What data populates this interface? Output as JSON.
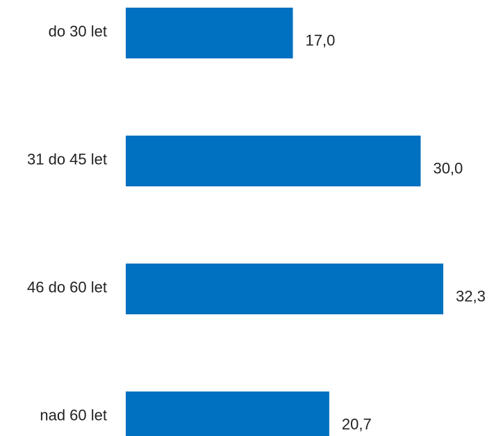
{
  "chart_data": {
    "type": "bar",
    "orientation": "horizontal",
    "title": "",
    "xlabel": "",
    "ylabel": "",
    "categories": [
      "do 30 let",
      "31 do 45 let",
      "46 do 60 let",
      "nad 60 let"
    ],
    "values": [
      17.0,
      30.0,
      32.3,
      20.7
    ],
    "value_labels": [
      "17,0",
      "30,0",
      "32,3",
      "20,7"
    ],
    "xlim": [
      0,
      32.3
    ],
    "grid": false,
    "legend": "none",
    "bar_color": "#0070C0"
  }
}
